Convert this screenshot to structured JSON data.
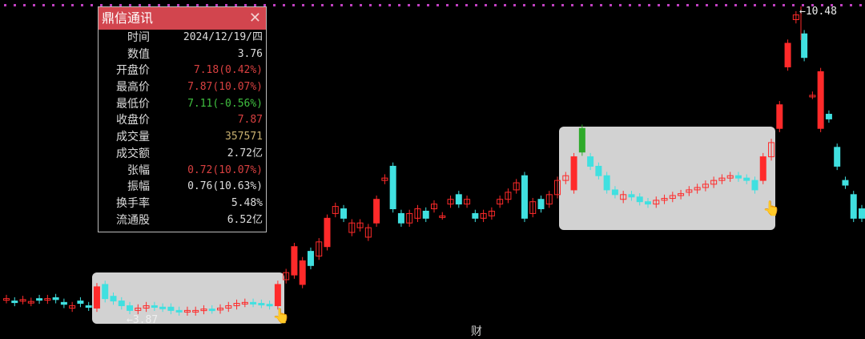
{
  "panel": {
    "title": "鼎信通讯",
    "close_icon": "close-icon",
    "rows": [
      {
        "k": "时间",
        "v": "2024/12/19/四",
        "color": "#dddddd"
      },
      {
        "k": "数值",
        "v": "3.76",
        "color": "#dddddd"
      },
      {
        "k": "开盘价",
        "v": "7.18(0.42%)",
        "color": "#d84040"
      },
      {
        "k": "最高价",
        "v": "7.87(10.07%)",
        "color": "#d84040"
      },
      {
        "k": "最低价",
        "v": "7.11(-0.56%)",
        "color": "#40c040"
      },
      {
        "k": "收盘价",
        "v": "7.87",
        "color": "#d84040"
      },
      {
        "k": "成交量",
        "v": "357571",
        "color": "#c8b070"
      },
      {
        "k": "成交额",
        "v": "2.72亿",
        "color": "#dddddd"
      },
      {
        "k": "张幅",
        "v": "0.72(10.07%)",
        "color": "#d84040"
      },
      {
        "k": "振幅",
        "v": "0.76(10.63%)",
        "color": "#dddddd"
      },
      {
        "k": "换手率",
        "v": "5.48%",
        "color": "#dddddd"
      },
      {
        "k": "流通股",
        "v": "6.52亿",
        "color": "#dddddd"
      }
    ]
  },
  "markers": {
    "high": "←10.48",
    "low": "←3.87",
    "bottom_label": "财"
  },
  "colors": {
    "up": "#ff2a2a",
    "down": "#40e0e0",
    "highlight": "#2faa2a",
    "dotline": "#c040c0"
  },
  "chart_data": {
    "type": "candlestick",
    "price_range": [
      3.87,
      10.48
    ],
    "candles": [
      [
        4.28,
        4.3
      ],
      [
        4.25,
        4.22
      ],
      [
        4.26,
        4.28
      ],
      [
        4.22,
        4.24
      ],
      [
        4.3,
        4.27
      ],
      [
        4.27,
        4.3
      ],
      [
        4.32,
        4.28
      ],
      [
        4.22,
        4.18
      ],
      [
        4.1,
        4.15
      ],
      [
        4.25,
        4.2
      ],
      [
        4.15,
        4.12
      ],
      [
        4.1,
        4.55
      ],
      [
        4.6,
        4.3
      ],
      [
        4.35,
        4.25
      ],
      [
        4.25,
        4.15
      ],
      [
        4.15,
        4.05
      ],
      [
        4.05,
        4.1
      ],
      [
        4.1,
        4.15
      ],
      [
        4.15,
        4.12
      ],
      [
        4.12,
        4.1
      ],
      [
        4.12,
        4.05
      ],
      [
        4.05,
        4.02
      ],
      [
        4.02,
        4.05
      ],
      [
        4.02,
        4.05
      ],
      [
        4.05,
        4.08
      ],
      [
        4.08,
        4.06
      ],
      [
        4.06,
        4.1
      ],
      [
        4.1,
        4.15
      ],
      [
        4.15,
        4.2
      ],
      [
        4.2,
        4.22
      ],
      [
        4.22,
        4.2
      ],
      [
        4.2,
        4.18
      ],
      [
        4.18,
        4.15
      ],
      [
        4.15,
        4.6
      ],
      [
        4.7,
        4.85
      ],
      [
        4.8,
        5.4
      ],
      [
        4.6,
        5.1
      ],
      [
        5.3,
        5.0
      ],
      [
        5.2,
        5.5
      ],
      [
        5.4,
        6.0
      ],
      [
        6.1,
        6.25
      ],
      [
        6.2,
        6.0
      ],
      [
        5.7,
        5.9
      ],
      [
        5.8,
        5.9
      ],
      [
        5.6,
        5.8
      ],
      [
        5.9,
        6.4
      ],
      [
        6.8,
        6.85
      ],
      [
        7.1,
        6.2
      ],
      [
        6.1,
        5.9
      ],
      [
        5.9,
        6.1
      ],
      [
        6.0,
        6.2
      ],
      [
        6.15,
        6.0
      ],
      [
        6.2,
        6.3
      ],
      [
        6.05,
        6.05
      ],
      [
        6.3,
        6.4
      ],
      [
        6.5,
        6.3
      ],
      [
        6.3,
        6.4
      ],
      [
        6.1,
        6.0
      ],
      [
        6.0,
        6.1
      ],
      [
        6.05,
        6.15
      ],
      [
        6.3,
        6.4
      ],
      [
        6.4,
        6.55
      ],
      [
        6.6,
        6.75
      ],
      [
        6.9,
        6.0
      ],
      [
        6.1,
        6.35
      ],
      [
        6.4,
        6.2
      ],
      [
        6.3,
        6.5
      ],
      [
        6.5,
        6.8
      ],
      [
        6.8,
        6.9
      ],
      [
        6.6,
        7.3
      ],
      [
        7.9,
        7.4
      ],
      [
        7.3,
        7.1
      ],
      [
        7.1,
        6.9
      ],
      [
        6.9,
        6.6
      ],
      [
        6.6,
        6.5
      ],
      [
        6.4,
        6.5
      ],
      [
        6.5,
        6.45
      ],
      [
        6.45,
        6.35
      ],
      [
        6.35,
        6.3
      ],
      [
        6.3,
        6.38
      ],
      [
        6.38,
        6.42
      ],
      [
        6.42,
        6.48
      ],
      [
        6.48,
        6.52
      ],
      [
        6.55,
        6.6
      ],
      [
        6.6,
        6.65
      ],
      [
        6.65,
        6.72
      ],
      [
        6.72,
        6.8
      ],
      [
        6.8,
        6.85
      ],
      [
        6.85,
        6.9
      ],
      [
        6.9,
        6.85
      ],
      [
        6.85,
        6.8
      ],
      [
        6.8,
        6.6
      ],
      [
        6.8,
        7.3
      ],
      [
        7.3,
        7.6
      ],
      [
        7.9,
        8.4
      ],
      [
        9.2,
        9.7
      ],
      [
        10.2,
        10.3
      ],
      [
        9.9,
        9.4
      ],
      [
        8.6,
        8.6
      ],
      [
        7.9,
        9.1
      ],
      [
        8.2,
        8.1
      ],
      [
        7.5,
        7.1
      ],
      [
        6.8,
        6.7
      ],
      [
        6.5,
        6.0
      ],
      [
        6.2,
        6.0
      ]
    ]
  }
}
